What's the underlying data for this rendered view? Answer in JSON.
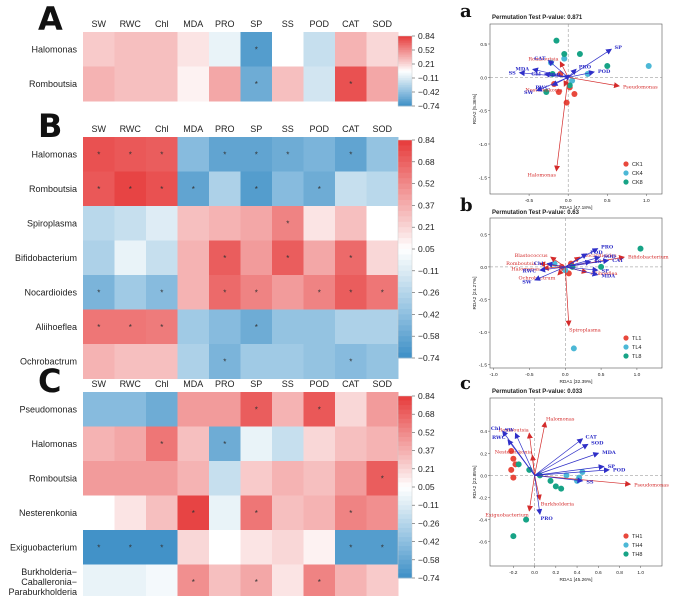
{
  "figure": {
    "colors": {
      "cmap": [
        [
          -0.74,
          "#3d8fc6"
        ],
        [
          -0.42,
          "#8fc0e0"
        ],
        [
          -0.11,
          "#dcebf4"
        ],
        [
          0.05,
          "#ffffff"
        ],
        [
          0.21,
          "#f9d4d4"
        ],
        [
          0.52,
          "#f08a8a"
        ],
        [
          0.84,
          "#e63a3a"
        ]
      ],
      "blue_axis": "#2f2fc8",
      "red_axis": "#d42b2b",
      "grid_line": "#888888"
    }
  },
  "chart_data": [
    {
      "type": "heatmap",
      "panel": "A",
      "columns": [
        "SW",
        "RWC",
        "Chl",
        "MDA",
        "PRO",
        "SP",
        "SS",
        "POD",
        "CAT",
        "SOD"
      ],
      "rows": [
        "Halomonas",
        "Romboutsia"
      ],
      "values": [
        [
          0.25,
          0.3,
          0.3,
          0.15,
          -0.05,
          -0.65,
          0.05,
          -0.2,
          0.35,
          0.2
        ],
        [
          0.35,
          0.3,
          0.3,
          0.1,
          0.4,
          -0.55,
          0.3,
          -0.15,
          0.75,
          0.4
        ]
      ],
      "sig": [
        [
          0,
          0,
          0,
          0,
          0,
          1,
          0,
          0,
          0,
          0
        ],
        [
          0,
          0,
          0,
          0,
          0,
          1,
          0,
          0,
          1,
          0
        ]
      ],
      "colorbar_ticks": [
        "0.84",
        "0.52",
        "0.21",
        "−0.11",
        "−0.42",
        "−0.74"
      ],
      "vmin": -0.74,
      "vmax": 0.84
    },
    {
      "type": "heatmap",
      "panel": "B",
      "columns": [
        "SW",
        "RWC",
        "Chl",
        "MDA",
        "PRO",
        "SP",
        "SS",
        "POD",
        "CAT",
        "SOD"
      ],
      "rows": [
        "Halomonas",
        "Romboutsia",
        "Spiroplasma",
        "Bifidobacterium",
        "Nocardioides",
        "Aliihoeflea",
        "Ochrobactrum"
      ],
      "values": [
        [
          0.75,
          0.72,
          0.7,
          -0.45,
          -0.6,
          -0.6,
          -0.55,
          -0.5,
          -0.6,
          -0.4
        ],
        [
          0.72,
          0.8,
          0.75,
          -0.6,
          -0.3,
          -0.65,
          -0.45,
          -0.55,
          -0.2,
          -0.25
        ],
        [
          -0.25,
          -0.2,
          -0.1,
          0.3,
          0.35,
          0.4,
          0.55,
          0.15,
          0.3,
          0.05
        ],
        [
          -0.3,
          -0.05,
          -0.2,
          0.35,
          0.7,
          0.45,
          0.7,
          0.4,
          0.65,
          0.2
        ],
        [
          -0.5,
          -0.35,
          -0.45,
          0.35,
          0.65,
          0.55,
          0.45,
          0.55,
          0.7,
          0.6
        ],
        [
          0.6,
          0.6,
          0.58,
          -0.35,
          -0.45,
          -0.55,
          -0.4,
          -0.4,
          -0.3,
          -0.3
        ],
        [
          0.35,
          0.3,
          0.3,
          -0.3,
          -0.5,
          -0.35,
          -0.35,
          -0.4,
          -0.45,
          -0.4
        ]
      ],
      "sig": [
        [
          1,
          1,
          1,
          0,
          1,
          1,
          1,
          0,
          1,
          0
        ],
        [
          1,
          1,
          1,
          1,
          0,
          1,
          0,
          1,
          0,
          0
        ],
        [
          0,
          0,
          0,
          0,
          0,
          0,
          1,
          0,
          0,
          0
        ],
        [
          0,
          0,
          0,
          0,
          1,
          0,
          1,
          0,
          1,
          0
        ],
        [
          1,
          0,
          1,
          0,
          1,
          1,
          0,
          1,
          1,
          1
        ],
        [
          1,
          1,
          1,
          0,
          0,
          1,
          0,
          0,
          0,
          0
        ],
        [
          0,
          0,
          0,
          0,
          1,
          0,
          0,
          0,
          1,
          0
        ]
      ],
      "colorbar_ticks": [
        "0.84",
        "0.68",
        "0.52",
        "0.37",
        "0.21",
        "0.05",
        "−0.11",
        "−0.26",
        "−0.42",
        "−0.58",
        "−0.74"
      ],
      "vmin": -0.74,
      "vmax": 0.84
    },
    {
      "type": "heatmap",
      "panel": "C",
      "columns": [
        "SW",
        "RWC",
        "Chl",
        "MDA",
        "PRO",
        "SP",
        "SS",
        "POD",
        "CAT",
        "SOD"
      ],
      "rows": [
        "Pseudomonas",
        "Halomonas",
        "Romboutsia",
        "Nesterenkonia",
        "Exiguobacterium",
        "Burkholderia−\nCaballeronia−\nParaburkholderia"
      ],
      "values": [
        [
          -0.45,
          -0.45,
          -0.55,
          0.45,
          0.45,
          0.7,
          0.35,
          0.72,
          0.2,
          0.45
        ],
        [
          0.35,
          0.4,
          0.6,
          0.3,
          -0.55,
          -0.05,
          -0.2,
          0.2,
          0.3,
          0.35
        ],
        [
          0.45,
          0.45,
          0.45,
          0.35,
          -0.2,
          0.25,
          0.35,
          0.3,
          0.45,
          0.7
        ],
        [
          0.05,
          0.15,
          0.3,
          0.8,
          -0.05,
          0.6,
          0.3,
          0.35,
          0.55,
          0.5
        ],
        [
          -0.72,
          -0.72,
          -0.72,
          0.2,
          0.05,
          0.15,
          0.2,
          0.1,
          -0.65,
          -0.65
        ],
        [
          -0.05,
          -0.05,
          0.0,
          0.5,
          0.3,
          0.4,
          0.15,
          0.55,
          0.35,
          0.25
        ]
      ],
      "sig": [
        [
          0,
          0,
          0,
          0,
          0,
          1,
          0,
          1,
          0,
          0
        ],
        [
          0,
          0,
          1,
          0,
          1,
          0,
          0,
          0,
          0,
          0
        ],
        [
          0,
          0,
          0,
          0,
          0,
          0,
          0,
          0,
          0,
          1
        ],
        [
          0,
          0,
          0,
          1,
          0,
          1,
          0,
          0,
          1,
          0
        ],
        [
          1,
          1,
          1,
          0,
          0,
          0,
          0,
          0,
          1,
          1
        ],
        [
          0,
          0,
          0,
          1,
          0,
          1,
          0,
          1,
          0,
          0
        ]
      ],
      "colorbar_ticks": [
        "0.84",
        "0.68",
        "0.52",
        "0.37",
        "0.21",
        "0.05",
        "−0.11",
        "−0.26",
        "−0.42",
        "−0.58",
        "−0.74"
      ],
      "vmin": -0.74,
      "vmax": 0.84
    },
    {
      "type": "scatter",
      "panel": "a",
      "title": "Permutation Test P-value: 0.871",
      "xlabel": "RDA1 [47.18%]",
      "ylabel": "RDA2 [5.36%]",
      "xlim": [
        -1.0,
        1.2
      ],
      "ylim": [
        -1.75,
        0.8
      ],
      "xticks": [
        "-0.5",
        "0.0",
        "0.5",
        "1.0"
      ],
      "yticks": [
        "0.5",
        "0.0",
        "-0.5",
        "-1.0",
        "-1.5"
      ],
      "blue_arrows": [
        {
          "label": "SP",
          "x": 0.55,
          "y": 0.42
        },
        {
          "label": "CAT",
          "x": -0.25,
          "y": 0.25
        },
        {
          "label": "PRO",
          "x": 0.1,
          "y": 0.12
        },
        {
          "label": "POD",
          "x": 0.33,
          "y": 0.08
        },
        {
          "label": "SOD",
          "x": -0.05,
          "y": 0.02
        },
        {
          "label": "SS",
          "x": -0.62,
          "y": 0.07
        },
        {
          "label": "MDA",
          "x": -0.45,
          "y": 0.12
        },
        {
          "label": "SW",
          "x": -0.4,
          "y": -0.2
        },
        {
          "label": "RWC",
          "x": -0.2,
          "y": -0.12
        },
        {
          "label": "Chl",
          "x": -0.3,
          "y": 0.05
        }
      ],
      "red_arrows": [
        {
          "label": "Pseudomonas",
          "x": 0.65,
          "y": -0.13
        },
        {
          "label": "Nesterenkonia",
          "x": -0.05,
          "y": -0.13
        },
        {
          "label": "Halomonas",
          "x": -0.15,
          "y": -1.4
        },
        {
          "label": "Romboutsia",
          "x": -0.1,
          "y": 0.23
        }
      ],
      "groups": [
        {
          "name": "CK1",
          "color": "#e8483c",
          "points": [
            [
              -0.12,
              -0.22
            ],
            [
              -0.02,
              -0.38
            ],
            [
              0.08,
              -0.25
            ],
            [
              -0.1,
              0.05
            ],
            [
              -0.18,
              -0.1
            ],
            [
              0.02,
              -0.15
            ]
          ]
        },
        {
          "name": "CK4",
          "color": "#4cb8d6",
          "points": [
            [
              -0.22,
              0.22
            ],
            [
              -0.05,
              0.28
            ],
            [
              0.05,
              -0.05
            ],
            [
              1.03,
              0.17
            ],
            [
              0.25,
              0.05
            ]
          ]
        },
        {
          "name": "CK8",
          "color": "#17a386",
          "points": [
            [
              -0.15,
              0.55
            ],
            [
              -0.05,
              0.35
            ],
            [
              0.15,
              0.35
            ],
            [
              0.5,
              0.17
            ],
            [
              -0.2,
              0.05
            ],
            [
              0.02,
              -0.12
            ],
            [
              -0.28,
              -0.22
            ]
          ]
        }
      ]
    },
    {
      "type": "scatter",
      "panel": "b",
      "title": "Permutation Test P-value: 0.63",
      "xlabel": "RDA1 [32.39%]",
      "ylabel": "RDA2 [24.27%]",
      "xlim": [
        -1.05,
        1.35
      ],
      "ylim": [
        -1.55,
        0.75
      ],
      "xticks": [
        "-1.0",
        "-0.5",
        "0.0",
        "0.5",
        "1.0"
      ],
      "yticks": [
        "0.5",
        "0.0",
        "-0.5",
        "-1.0",
        "-1.5"
      ],
      "blue_arrows": [
        {
          "label": "PRO",
          "x": 0.45,
          "y": 0.28
        },
        {
          "label": "POD",
          "x": 0.3,
          "y": 0.2
        },
        {
          "label": "SS",
          "x": 0.35,
          "y": 0.08
        },
        {
          "label": "SOD",
          "x": 0.48,
          "y": 0.15
        },
        {
          "label": "CAT",
          "x": 0.6,
          "y": 0.1
        },
        {
          "label": "Chl",
          "x": -0.25,
          "y": 0.05
        },
        {
          "label": "RWC",
          "x": -0.35,
          "y": -0.05
        },
        {
          "label": "SW",
          "x": -0.42,
          "y": -0.2
        },
        {
          "label": "SP",
          "x": 0.45,
          "y": -0.05
        },
        {
          "label": "MDA",
          "x": 0.45,
          "y": -0.12
        }
      ],
      "red_arrows": [
        {
          "label": "Bifidobacterium",
          "x": 0.82,
          "y": 0.15
        },
        {
          "label": "Blastococcus",
          "x": -0.2,
          "y": 0.15
        },
        {
          "label": "Nocardioides",
          "x": 0.2,
          "y": 0.15
        },
        {
          "label": "Romboutsia",
          "x": -0.35,
          "y": 0.05
        },
        {
          "label": "Halomonas",
          "x": -0.3,
          "y": -0.02
        },
        {
          "label": "Ochrobactrum",
          "x": -0.1,
          "y": -0.12
        },
        {
          "label": "Aliihoeflea",
          "x": 0.3,
          "y": -0.08
        },
        {
          "label": "Spiroplasma",
          "x": 0.05,
          "y": -0.9
        }
      ],
      "groups": [
        {
          "name": "TL1",
          "color": "#e8483c",
          "points": [
            [
              -0.05,
              0.0
            ],
            [
              0.05,
              -0.1
            ],
            [
              0.08,
              0.05
            ]
          ]
        },
        {
          "name": "TL4",
          "color": "#4cb8d6",
          "points": [
            [
              -0.15,
              0.05
            ],
            [
              0.12,
              -1.25
            ],
            [
              0.0,
              -0.05
            ]
          ]
        },
        {
          "name": "TL8",
          "color": "#17a386",
          "points": [
            [
              1.05,
              0.28
            ],
            [
              0.5,
              0.0
            ],
            [
              0.1,
              0.0
            ]
          ]
        }
      ]
    },
    {
      "type": "scatter",
      "panel": "c",
      "title": "Permutation Test P-value: 0.033",
      "xlabel": "RDA1 [45.26%]",
      "ylabel": "RDA2 [22.85%]",
      "xlim": [
        -0.42,
        1.2
      ],
      "ylim": [
        -0.82,
        0.7
      ],
      "xticks": [
        "-0.2",
        "0.0",
        "0.2",
        "0.4",
        "0.6",
        "0.8",
        "1.0"
      ],
      "yticks": [
        "0.4",
        "0.2",
        "0.0",
        "-0.2",
        "-0.4",
        "-0.6"
      ],
      "blue_arrows": [
        {
          "label": "Chl",
          "x": -0.3,
          "y": 0.4
        },
        {
          "label": "SW",
          "x": -0.18,
          "y": 0.38
        },
        {
          "label": "RWC",
          "x": -0.25,
          "y": 0.32
        },
        {
          "label": "CAT",
          "x": 0.45,
          "y": 0.33
        },
        {
          "label": "SOD",
          "x": 0.5,
          "y": 0.28
        },
        {
          "label": "MDA",
          "x": 0.6,
          "y": 0.2
        },
        {
          "label": "SP",
          "x": 0.65,
          "y": 0.08
        },
        {
          "label": "POD",
          "x": 0.7,
          "y": 0.05
        },
        {
          "label": "SS",
          "x": 0.45,
          "y": -0.05
        },
        {
          "label": "PRO",
          "x": 0.05,
          "y": -0.35
        }
      ],
      "red_arrows": [
        {
          "label": "Halomonas",
          "x": 0.1,
          "y": 0.48
        },
        {
          "label": "Romboutsia",
          "x": -0.05,
          "y": 0.38
        },
        {
          "label": "Nesterenkonia",
          "x": -0.02,
          "y": 0.18
        },
        {
          "label": "Pseudomonas",
          "x": 0.9,
          "y": -0.08
        },
        {
          "label": "Burkholderia",
          "x": 0.05,
          "y": -0.22
        },
        {
          "label": "Exiguobacterium",
          "x": -0.05,
          "y": -0.32
        }
      ],
      "groups": [
        {
          "name": "TH1",
          "color": "#e8483c",
          "points": [
            [
              -0.22,
              0.22
            ],
            [
              -0.2,
              0.15
            ],
            [
              -0.18,
              0.1
            ],
            [
              -0.22,
              0.05
            ],
            [
              -0.2,
              -0.02
            ]
          ]
        },
        {
          "name": "TH4",
          "color": "#4cb8d6",
          "points": [
            [
              0.3,
              0.0
            ],
            [
              0.42,
              -0.02
            ],
            [
              0.45,
              0.03
            ],
            [
              0.4,
              -0.05
            ]
          ]
        },
        {
          "name": "TH8",
          "color": "#17a386",
          "points": [
            [
              -0.15,
              0.1
            ],
            [
              -0.05,
              0.05
            ],
            [
              0.05,
              0.0
            ],
            [
              0.2,
              -0.1
            ],
            [
              -0.08,
              -0.4
            ],
            [
              -0.2,
              -0.55
            ],
            [
              0.15,
              -0.05
            ],
            [
              0.25,
              -0.12
            ]
          ]
        }
      ]
    }
  ]
}
